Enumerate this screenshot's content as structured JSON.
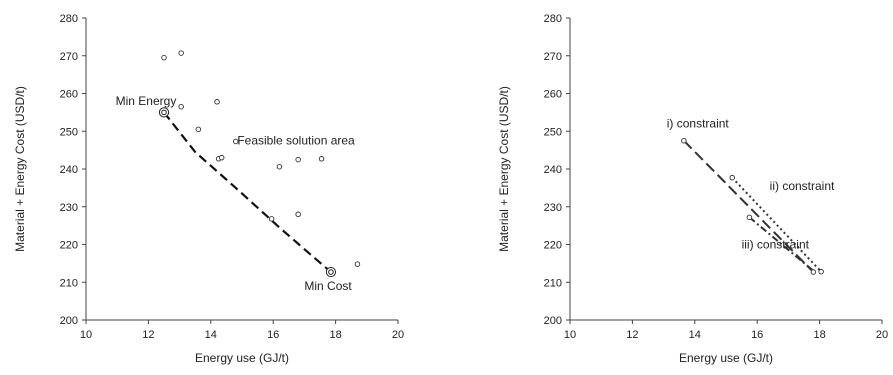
{
  "chart_data": [
    {
      "type": "scatter",
      "xlabel": "Energy use (GJ/t)",
      "ylabel": "Material + Energy Cost (USD/t)",
      "xlim": [
        10,
        20
      ],
      "ylim": [
        200,
        280
      ],
      "xticks": [
        "10",
        "12",
        "14",
        "16",
        "18",
        "20"
      ],
      "yticks": [
        "200",
        "210",
        "220",
        "230",
        "240",
        "250",
        "260",
        "270",
        "280"
      ],
      "grid": false,
      "points": [
        {
          "x": 12.5,
          "y": 269.5
        },
        {
          "x": 13.05,
          "y": 270.7
        },
        {
          "x": 13.05,
          "y": 256.5
        },
        {
          "x": 14.2,
          "y": 257.8
        },
        {
          "x": 13.6,
          "y": 250.5
        },
        {
          "x": 14.8,
          "y": 247.3
        },
        {
          "x": 14.25,
          "y": 242.7
        },
        {
          "x": 14.35,
          "y": 243.0
        },
        {
          "x": 16.2,
          "y": 240.6
        },
        {
          "x": 16.8,
          "y": 242.5
        },
        {
          "x": 17.55,
          "y": 242.7
        },
        {
          "x": 15.95,
          "y": 226.8
        },
        {
          "x": 16.8,
          "y": 228.0
        },
        {
          "x": 18.7,
          "y": 214.8
        }
      ],
      "highlight_points": [
        {
          "x": 12.5,
          "y": 255.0
        },
        {
          "x": 17.85,
          "y": 212.7
        }
      ],
      "frontier": {
        "style": "dashed",
        "x": [
          12.5,
          13.5,
          14.8,
          16.2,
          17.85
        ],
        "y": [
          255.0,
          244.5,
          235.0,
          224.5,
          212.7
        ]
      },
      "annotations": [
        {
          "text": "Min Energy",
          "x": 10.95,
          "y": 257.0
        },
        {
          "text": "Feasible solution area",
          "x": 14.85,
          "y": 246.5
        },
        {
          "text": "Min Cost",
          "x": 17.0,
          "y": 208.0
        }
      ]
    },
    {
      "type": "line",
      "xlabel": "Energy use (GJ/t)",
      "ylabel": "Material + Energy Cost (USD/t)",
      "xlim": [
        10,
        20
      ],
      "ylim": [
        200,
        280
      ],
      "xticks": [
        "10",
        "12",
        "14",
        "16",
        "18",
        "20"
      ],
      "yticks": [
        "200",
        "210",
        "220",
        "230",
        "240",
        "250",
        "260",
        "270",
        "280"
      ],
      "grid": false,
      "series": [
        {
          "style": "long-dash",
          "x": [
            13.65,
            17.8
          ],
          "y": [
            247.5,
            212.7
          ]
        },
        {
          "style": "dotted",
          "x": [
            15.2,
            18.05
          ],
          "y": [
            237.7,
            212.8
          ]
        },
        {
          "style": "dash-dot",
          "x": [
            15.75,
            17.85
          ],
          "y": [
            227.2,
            212.7
          ]
        }
      ],
      "points": [
        {
          "x": 13.65,
          "y": 247.5
        },
        {
          "x": 15.2,
          "y": 237.7
        },
        {
          "x": 15.75,
          "y": 227.2
        },
        {
          "x": 17.8,
          "y": 212.7
        },
        {
          "x": 18.05,
          "y": 212.8
        }
      ],
      "annotations": [
        {
          "text": "i) constraint",
          "x": 13.1,
          "y": 251.0
        },
        {
          "text": "ii) constraint",
          "x": 16.4,
          "y": 234.5
        },
        {
          "text": "iii) constraint",
          "x": 15.5,
          "y": 219.0
        }
      ]
    }
  ]
}
